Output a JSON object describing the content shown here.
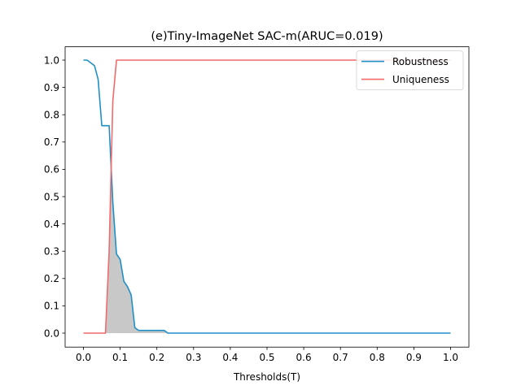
{
  "chart_data": {
    "type": "line",
    "title": "(e)Tiny-ImageNet SAC-m(ARUC=0.019)",
    "xlabel": "Thresholds(T)",
    "ylabel": "",
    "xlim": [
      0.0,
      1.0
    ],
    "ylim": [
      0.0,
      1.0
    ],
    "xticks": [
      "0.0",
      "0.1",
      "0.2",
      "0.3",
      "0.4",
      "0.5",
      "0.6",
      "0.7",
      "0.8",
      "0.9",
      "1.0"
    ],
    "yticks": [
      "0.0",
      "0.1",
      "0.2",
      "0.3",
      "0.4",
      "0.5",
      "0.6",
      "0.7",
      "0.8",
      "0.9",
      "1.0"
    ],
    "grid": false,
    "legend_position": "top-right",
    "shade_overlap": true,
    "series": [
      {
        "name": "Robustness",
        "color": "#1f8fc6",
        "x": [
          0.0,
          0.01,
          0.02,
          0.03,
          0.04,
          0.05,
          0.06,
          0.07,
          0.08,
          0.09,
          0.1,
          0.11,
          0.12,
          0.13,
          0.14,
          0.15,
          0.16,
          0.17,
          0.18,
          0.19,
          0.2,
          0.21,
          0.22,
          0.23,
          0.24,
          0.25,
          0.3,
          0.4,
          0.5,
          0.6,
          0.7,
          0.8,
          0.9,
          1.0
        ],
        "values": [
          1.0,
          1.0,
          0.99,
          0.98,
          0.93,
          0.76,
          0.76,
          0.76,
          0.48,
          0.29,
          0.27,
          0.19,
          0.17,
          0.14,
          0.02,
          0.01,
          0.01,
          0.01,
          0.01,
          0.01,
          0.01,
          0.01,
          0.01,
          0.0,
          0.0,
          0.0,
          0.0,
          0.0,
          0.0,
          0.0,
          0.0,
          0.0,
          0.0,
          0.0
        ]
      },
      {
        "name": "Uniqueness",
        "color": "#f26a6a",
        "x": [
          0.0,
          0.01,
          0.02,
          0.03,
          0.04,
          0.05,
          0.06,
          0.07,
          0.08,
          0.09,
          0.1,
          0.2,
          0.3,
          0.4,
          0.5,
          0.6,
          0.7,
          0.8,
          0.9,
          1.0
        ],
        "values": [
          0.0,
          0.0,
          0.0,
          0.0,
          0.0,
          0.0,
          0.0,
          0.3,
          0.85,
          1.0,
          1.0,
          1.0,
          1.0,
          1.0,
          1.0,
          1.0,
          1.0,
          1.0,
          1.0,
          1.0
        ]
      }
    ]
  }
}
